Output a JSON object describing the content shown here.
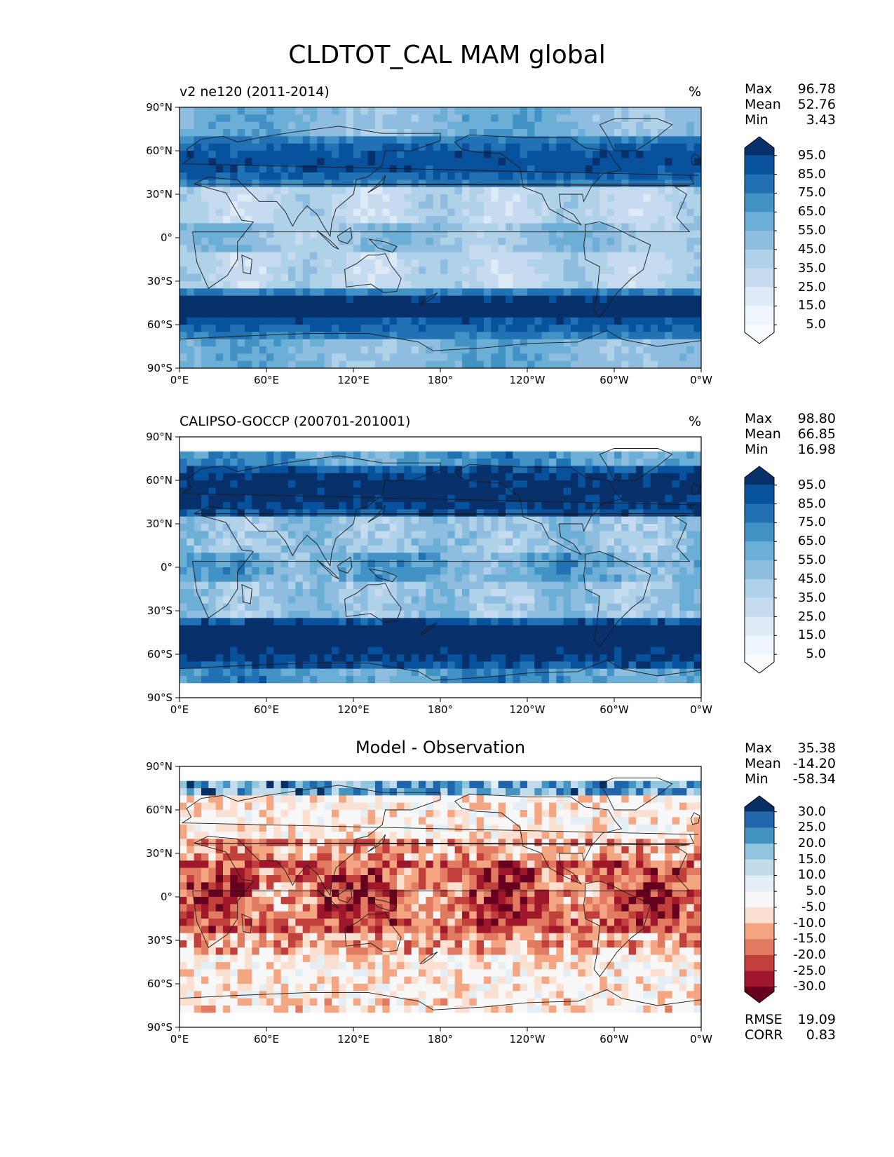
{
  "figure": {
    "title": "CLDTOT_CAL MAM global"
  },
  "axes": {
    "lat_ticks": [
      "90°N",
      "60°N",
      "30°N",
      "0°",
      "30°S",
      "60°S",
      "90°S"
    ],
    "lon_ticks": [
      "0°E",
      "60°E",
      "120°E",
      "180°",
      "120°W",
      "60°W",
      "0°W"
    ]
  },
  "panels": [
    {
      "id": "model",
      "title": "v2 ne120 (2011-2014)",
      "units": "%",
      "stats": {
        "max_label": "Max",
        "max": "96.78",
        "mean_label": "Mean",
        "mean": "52.76",
        "min_label": "Min",
        "min": "3.43"
      },
      "colorbar": {
        "labels": [
          "95.0",
          "85.0",
          "75.0",
          "65.0",
          "55.0",
          "45.0",
          "35.0",
          "25.0",
          "15.0",
          "5.0"
        ],
        "colors": [
          "#08306b",
          "#08519c",
          "#2171b5",
          "#4292c6",
          "#6baed6",
          "#8fbde0",
          "#b0d2e8",
          "#c6dbef",
          "#deebf7",
          "#eef5fc",
          "#f7fbff"
        ]
      }
    },
    {
      "id": "obs",
      "title": "CALIPSO-GOCCP (200701-201001)",
      "units": "%",
      "stats": {
        "max_label": "Max",
        "max": "98.80",
        "mean_label": "Mean",
        "mean": "66.85",
        "min_label": "Min",
        "min": "16.98"
      },
      "colorbar": {
        "labels": [
          "95.0",
          "85.0",
          "75.0",
          "65.0",
          "55.0",
          "45.0",
          "35.0",
          "25.0",
          "15.0",
          "5.0"
        ],
        "colors": [
          "#08306b",
          "#08519c",
          "#2171b5",
          "#4292c6",
          "#6baed6",
          "#8fbde0",
          "#b0d2e8",
          "#c6dbef",
          "#deebf7",
          "#eef5fc",
          "#f7fbff"
        ]
      }
    },
    {
      "id": "diff",
      "center_title": "Model - Observation",
      "stats": {
        "max_label": "Max",
        "max": "35.38",
        "mean_label": "Mean",
        "mean": "-14.20",
        "min_label": "Min",
        "min": "-58.34"
      },
      "colorbar": {
        "labels": [
          "30.0",
          "25.0",
          "20.0",
          "15.0",
          "10.0",
          "5.0",
          "-5.0",
          "-10.0",
          "-15.0",
          "-20.0",
          "-25.0",
          "-30.0"
        ],
        "colors": [
          "#053061",
          "#2166ac",
          "#4393c3",
          "#92c5de",
          "#c3dcec",
          "#e4eef5",
          "#f7f7f7",
          "#fbe0d1",
          "#f4a582",
          "#e07b62",
          "#c2403b",
          "#a0172b",
          "#67001f"
        ]
      },
      "metrics": {
        "rmse_label": "RMSE",
        "rmse": "19.09",
        "corr_label": "CORR",
        "corr": "0.83"
      }
    }
  ]
}
